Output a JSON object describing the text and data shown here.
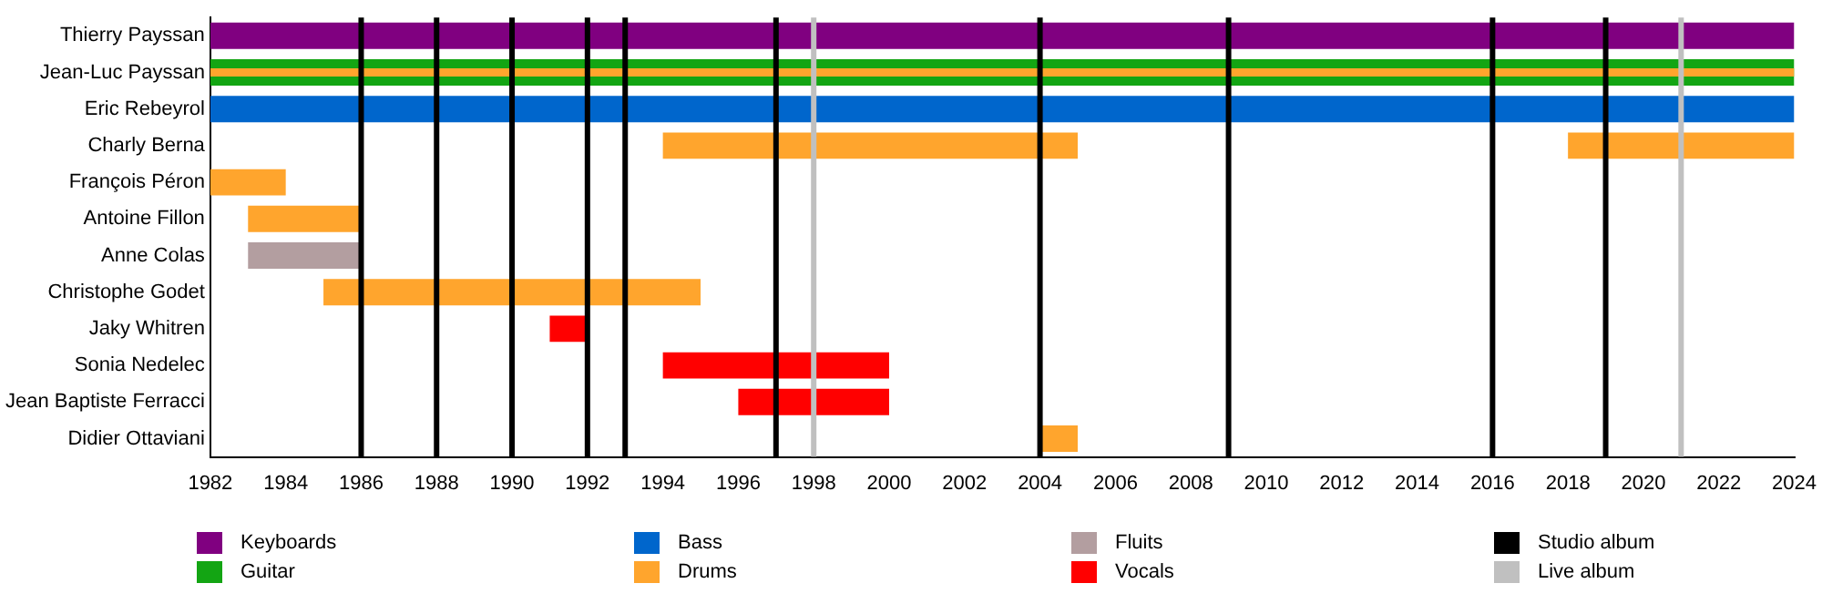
{
  "chart_data": {
    "type": "bar",
    "orientation": "horizontal",
    "grid": false,
    "legend": "bottom",
    "categories": [
      "Thierry Payssan",
      "Jean-Luc Payssan",
      "Eric Rebeyrol",
      "Charly Berna",
      "François Péron",
      "Antoine Fillon",
      "Anne Colas",
      "Christophe Godet",
      "Jaky Whitren",
      "Sonia Nedelec",
      "Jean Baptiste Ferracci",
      "Didier Ottaviani"
    ],
    "xlim": [
      1982,
      2024
    ],
    "xticks": [
      1982,
      1984,
      1986,
      1988,
      1990,
      1992,
      1994,
      1996,
      1998,
      2000,
      2002,
      2004,
      2006,
      2008,
      2010,
      2012,
      2014,
      2016,
      2018,
      2020,
      2022,
      2024
    ],
    "series": [
      {
        "name": "Keyboards",
        "color": "#800080",
        "base": [
          1982,
          null,
          null,
          null,
          null,
          null,
          null,
          null,
          null,
          null,
          null,
          null
        ],
        "values": [
          42,
          null,
          null,
          null,
          null,
          null,
          null,
          null,
          null,
          null,
          null,
          null
        ]
      },
      {
        "name": "Guitar",
        "color": "#13a513",
        "base": [
          null,
          1982,
          null,
          null,
          null,
          null,
          null,
          null,
          null,
          null,
          null,
          null
        ],
        "values": [
          null,
          42,
          null,
          null,
          null,
          null,
          null,
          null,
          null,
          null,
          null,
          null
        ]
      },
      {
        "name": "Bass",
        "color": "#0066cc",
        "base": [
          null,
          null,
          1982,
          null,
          null,
          null,
          null,
          null,
          null,
          null,
          null,
          null
        ],
        "values": [
          null,
          null,
          42,
          null,
          null,
          null,
          null,
          null,
          null,
          null,
          null,
          null
        ]
      },
      {
        "name": "Drums",
        "color": "#ffa52d",
        "base": [
          null,
          1982,
          null,
          1994,
          1982,
          1983,
          null,
          1985,
          null,
          null,
          null,
          2004
        ],
        "values": [
          null,
          42,
          null,
          11,
          2,
          3,
          null,
          10,
          null,
          null,
          null,
          1
        ]
      },
      {
        "name": "Fluits",
        "color": "#b39ea0",
        "base": [
          null,
          null,
          null,
          null,
          null,
          null,
          1983,
          null,
          null,
          null,
          null,
          null
        ],
        "values": [
          null,
          null,
          null,
          null,
          null,
          null,
          3,
          null,
          null,
          null,
          null,
          null
        ]
      },
      {
        "name": "Vocals",
        "color": "#ff0000",
        "base": [
          null,
          null,
          null,
          null,
          null,
          null,
          null,
          null,
          1991,
          1994,
          1996,
          null
        ],
        "values": [
          null,
          null,
          null,
          null,
          null,
          null,
          null,
          null,
          1,
          6,
          4,
          null
        ]
      },
      {
        "color": "#ffa52d",
        "base": [
          null,
          null,
          null,
          2018,
          null,
          null,
          null,
          null,
          null,
          null,
          null,
          null
        ],
        "values": [
          null,
          null,
          null,
          6,
          null,
          null,
          null,
          null,
          null,
          null,
          null,
          null
        ]
      }
    ],
    "ref_lines": [
      {
        "axis": "x",
        "value": 1986,
        "label": "Studio album",
        "color": "#000000"
      },
      {
        "axis": "x",
        "value": 1988,
        "color": "#000000"
      },
      {
        "axis": "x",
        "value": 1990,
        "color": "#000000"
      },
      {
        "axis": "x",
        "value": 1992,
        "color": "#000000"
      },
      {
        "axis": "x",
        "value": 1993,
        "color": "#000000"
      },
      {
        "axis": "x",
        "value": 1997,
        "color": "#000000"
      },
      {
        "axis": "x",
        "value": 1998,
        "label": "Live album",
        "color": "#c0c0c0"
      },
      {
        "axis": "x",
        "value": 2004,
        "color": "#000000"
      },
      {
        "axis": "x",
        "value": 2009,
        "color": "#000000"
      },
      {
        "axis": "x",
        "value": 2016,
        "color": "#000000"
      },
      {
        "axis": "x",
        "value": 2019,
        "color": "#000000"
      },
      {
        "axis": "x",
        "value": 2021,
        "color": "#c0c0c0"
      }
    ]
  }
}
